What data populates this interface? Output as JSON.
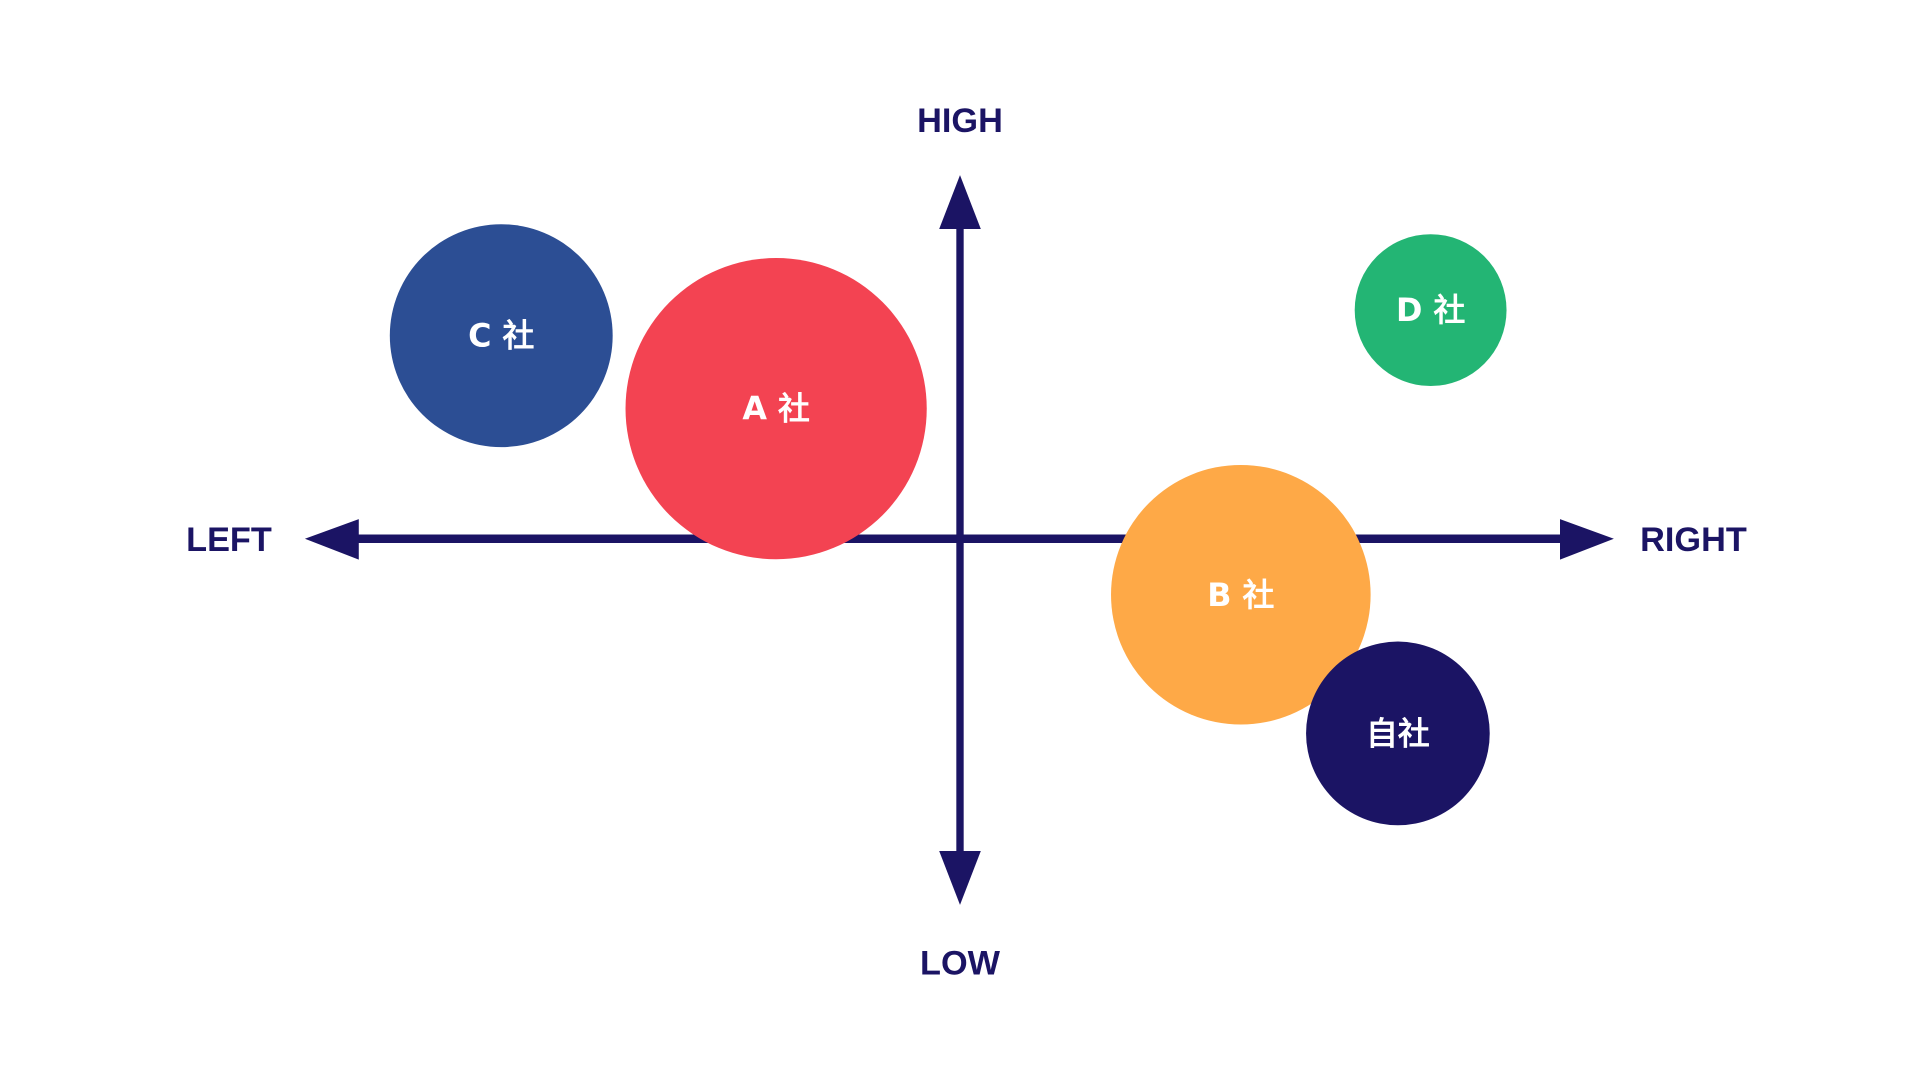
{
  "chart_data": {
    "type": "scatter",
    "subtype": "bubble positioning map",
    "title": "",
    "axis_color": "#1b1464",
    "xlim": [
      -100,
      100
    ],
    "ylim": [
      -100,
      100
    ],
    "grid": false,
    "axis_labels": {
      "top": "HIGH",
      "bottom": "LOW",
      "left": "LEFT",
      "right": "RIGHT"
    },
    "points": [
      {
        "label": "C 社",
        "x": -70,
        "y": 56,
        "size": 91,
        "color": "#2c4e94"
      },
      {
        "label": "A 社",
        "x": -28,
        "y": 36,
        "size": 123,
        "color": "#f34352"
      },
      {
        "label": "D 社",
        "x": 72,
        "y": 63,
        "size": 62,
        "color": "#23b574"
      },
      {
        "label": "B 社",
        "x": 43,
        "y": -15,
        "size": 106,
        "color": "#fea947"
      },
      {
        "label": "自社",
        "x": 67,
        "y": -53,
        "size": 75,
        "color": "#1b1464"
      }
    ]
  }
}
